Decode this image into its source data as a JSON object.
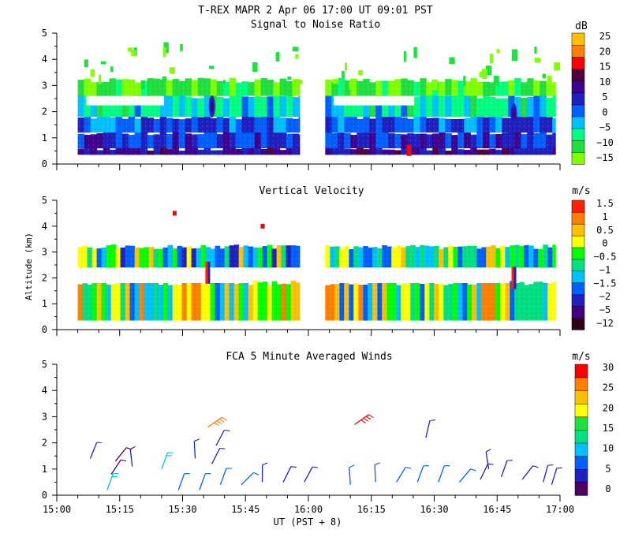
{
  "header": {
    "title": "T-REX  MAPR  2 Apr 06  17:00 UT  09:01  PST"
  },
  "colors": {
    "snr": [
      "#80ff00",
      "#20e040",
      "#00ff80",
      "#00c0ff",
      "#0060ff",
      "#2020c0",
      "#400090",
      "#500040",
      "#ff0000",
      "#ff8000",
      "#ffc000"
    ],
    "vv": [
      "#300018",
      "#400080",
      "#2020c0",
      "#0060ff",
      "#00c0ff",
      "#00e080",
      "#00ff00",
      "#ffff00",
      "#ffc000",
      "#ff8000",
      "#ff2000"
    ],
    "winds": [
      "#500060",
      "#2020c0",
      "#0060ff",
      "#00c0ff",
      "#00e080",
      "#20e040",
      "#ffff00",
      "#ffc000",
      "#ff8000",
      "#ff0000"
    ]
  },
  "chart_data": [
    {
      "id": "snr",
      "type": "heatmap",
      "title": "Signal to Noise Ratio",
      "xlabel": "",
      "ylabel": "",
      "xlim": [
        0,
        120
      ],
      "ylim": [
        0,
        5
      ],
      "yticks": [
        "0",
        "1",
        "2",
        "3",
        "4",
        "5"
      ],
      "cbar_unit": "dB",
      "cbar_labels": [
        "25",
        "20",
        "15",
        "10",
        "5",
        "0",
        "−5",
        "−10",
        "−15"
      ],
      "segments": [
        [
          5,
          58
        ],
        [
          64,
          119
        ]
      ],
      "layers": [
        {
          "y0": 0.35,
          "y1": 0.6,
          "value": 8
        },
        {
          "y0": 0.6,
          "y1": 1.2,
          "value": 5
        },
        {
          "y0": 1.2,
          "y1": 1.8,
          "value": 2
        },
        {
          "y0": 1.8,
          "y1": 2.6,
          "value": -5
        },
        {
          "y0": 2.6,
          "y1": 3.2,
          "value": -12
        }
      ],
      "features": [
        {
          "x": 37,
          "y": 2.2,
          "label": "plume"
        },
        {
          "x": 84,
          "y": 0.55,
          "label": "peak"
        },
        {
          "x": 109,
          "y": 1.9,
          "label": "plume"
        }
      ]
    },
    {
      "id": "vv",
      "type": "heatmap",
      "title": "Vertical Velocity",
      "xlabel": "",
      "ylabel": "Altitude (km)",
      "xlim": [
        0,
        120
      ],
      "ylim": [
        0,
        5
      ],
      "yticks": [
        "0",
        "1",
        "2",
        "3",
        "4",
        "5"
      ],
      "cbar_unit": "m/s",
      "cbar_labels": [
        "1.5",
        "1",
        "0.5",
        "0",
        "−0.5",
        "−1",
        "−1.5",
        "−2",
        "−5",
        "−12"
      ],
      "segments": [
        [
          5,
          58
        ],
        [
          64,
          119
        ]
      ],
      "layers": [
        {
          "y0": 0.35,
          "y1": 1.8,
          "value": 0
        },
        {
          "y0": 2.4,
          "y1": 3.2,
          "value": -0.5
        }
      ],
      "features": [
        {
          "x": 28,
          "y": 4.5,
          "label": "spot"
        },
        {
          "x": 49,
          "y": 4.0,
          "label": "spot"
        },
        {
          "x": 36,
          "y": 2.2,
          "label": "column"
        },
        {
          "x": 109,
          "y": 2.0,
          "label": "column"
        }
      ]
    },
    {
      "id": "winds",
      "type": "scatter",
      "title": "FCA 5 Minute Averaged Winds",
      "xlabel": "UT  (PST + 8)",
      "ylabel": "",
      "xlim": [
        0,
        120
      ],
      "ylim": [
        0,
        5
      ],
      "yticks": [
        "0",
        "1",
        "2",
        "3",
        "4",
        "5"
      ],
      "xticks": [
        "15:00",
        "15:15",
        "15:30",
        "15:45",
        "16:00",
        "16:15",
        "16:30",
        "16:45",
        "17:00"
      ],
      "cbar_unit": "m/s",
      "cbar_labels": [
        "30",
        "25",
        "20",
        "15",
        "10",
        "5",
        "0"
      ],
      "points": [
        {
          "x": 8,
          "y": 1.4,
          "speed": 3
        },
        {
          "x": 14,
          "y": 1.3,
          "speed": 2
        },
        {
          "x": 18,
          "y": 1.1,
          "speed": 3
        },
        {
          "x": 13,
          "y": 0.8,
          "speed": 2
        },
        {
          "x": 25,
          "y": 1.0,
          "speed": 11
        },
        {
          "x": 33,
          "y": 1.4,
          "speed": 3
        },
        {
          "x": 36,
          "y": 2.6,
          "speed": 24
        },
        {
          "x": 38,
          "y": 1.9,
          "speed": 4
        },
        {
          "x": 37,
          "y": 1.2,
          "speed": 3
        },
        {
          "x": 12,
          "y": 0.2,
          "speed": 9
        },
        {
          "x": 29,
          "y": 0.2,
          "speed": 8
        },
        {
          "x": 34,
          "y": 0.2,
          "speed": 8
        },
        {
          "x": 39,
          "y": 0.4,
          "speed": 7
        },
        {
          "x": 44,
          "y": 0.4,
          "speed": 6
        },
        {
          "x": 49,
          "y": 0.5,
          "speed": 5
        },
        {
          "x": 54,
          "y": 0.5,
          "speed": 5
        },
        {
          "x": 59,
          "y": 0.5,
          "speed": 5
        },
        {
          "x": 70,
          "y": 0.4,
          "speed": 6
        },
        {
          "x": 76,
          "y": 0.5,
          "speed": 6
        },
        {
          "x": 81,
          "y": 0.5,
          "speed": 6
        },
        {
          "x": 86,
          "y": 0.5,
          "speed": 7
        },
        {
          "x": 91,
          "y": 0.5,
          "speed": 7
        },
        {
          "x": 96,
          "y": 0.5,
          "speed": 6
        },
        {
          "x": 101,
          "y": 0.6,
          "speed": 5
        },
        {
          "x": 106,
          "y": 0.7,
          "speed": 4
        },
        {
          "x": 111,
          "y": 0.6,
          "speed": 4
        },
        {
          "x": 116,
          "y": 0.5,
          "speed": 5
        },
        {
          "x": 118,
          "y": 0.4,
          "speed": 5
        },
        {
          "x": 71,
          "y": 2.7,
          "speed": 29
        },
        {
          "x": 88,
          "y": 2.2,
          "speed": 5
        },
        {
          "x": 103,
          "y": 1.0,
          "speed": 3
        }
      ]
    }
  ]
}
